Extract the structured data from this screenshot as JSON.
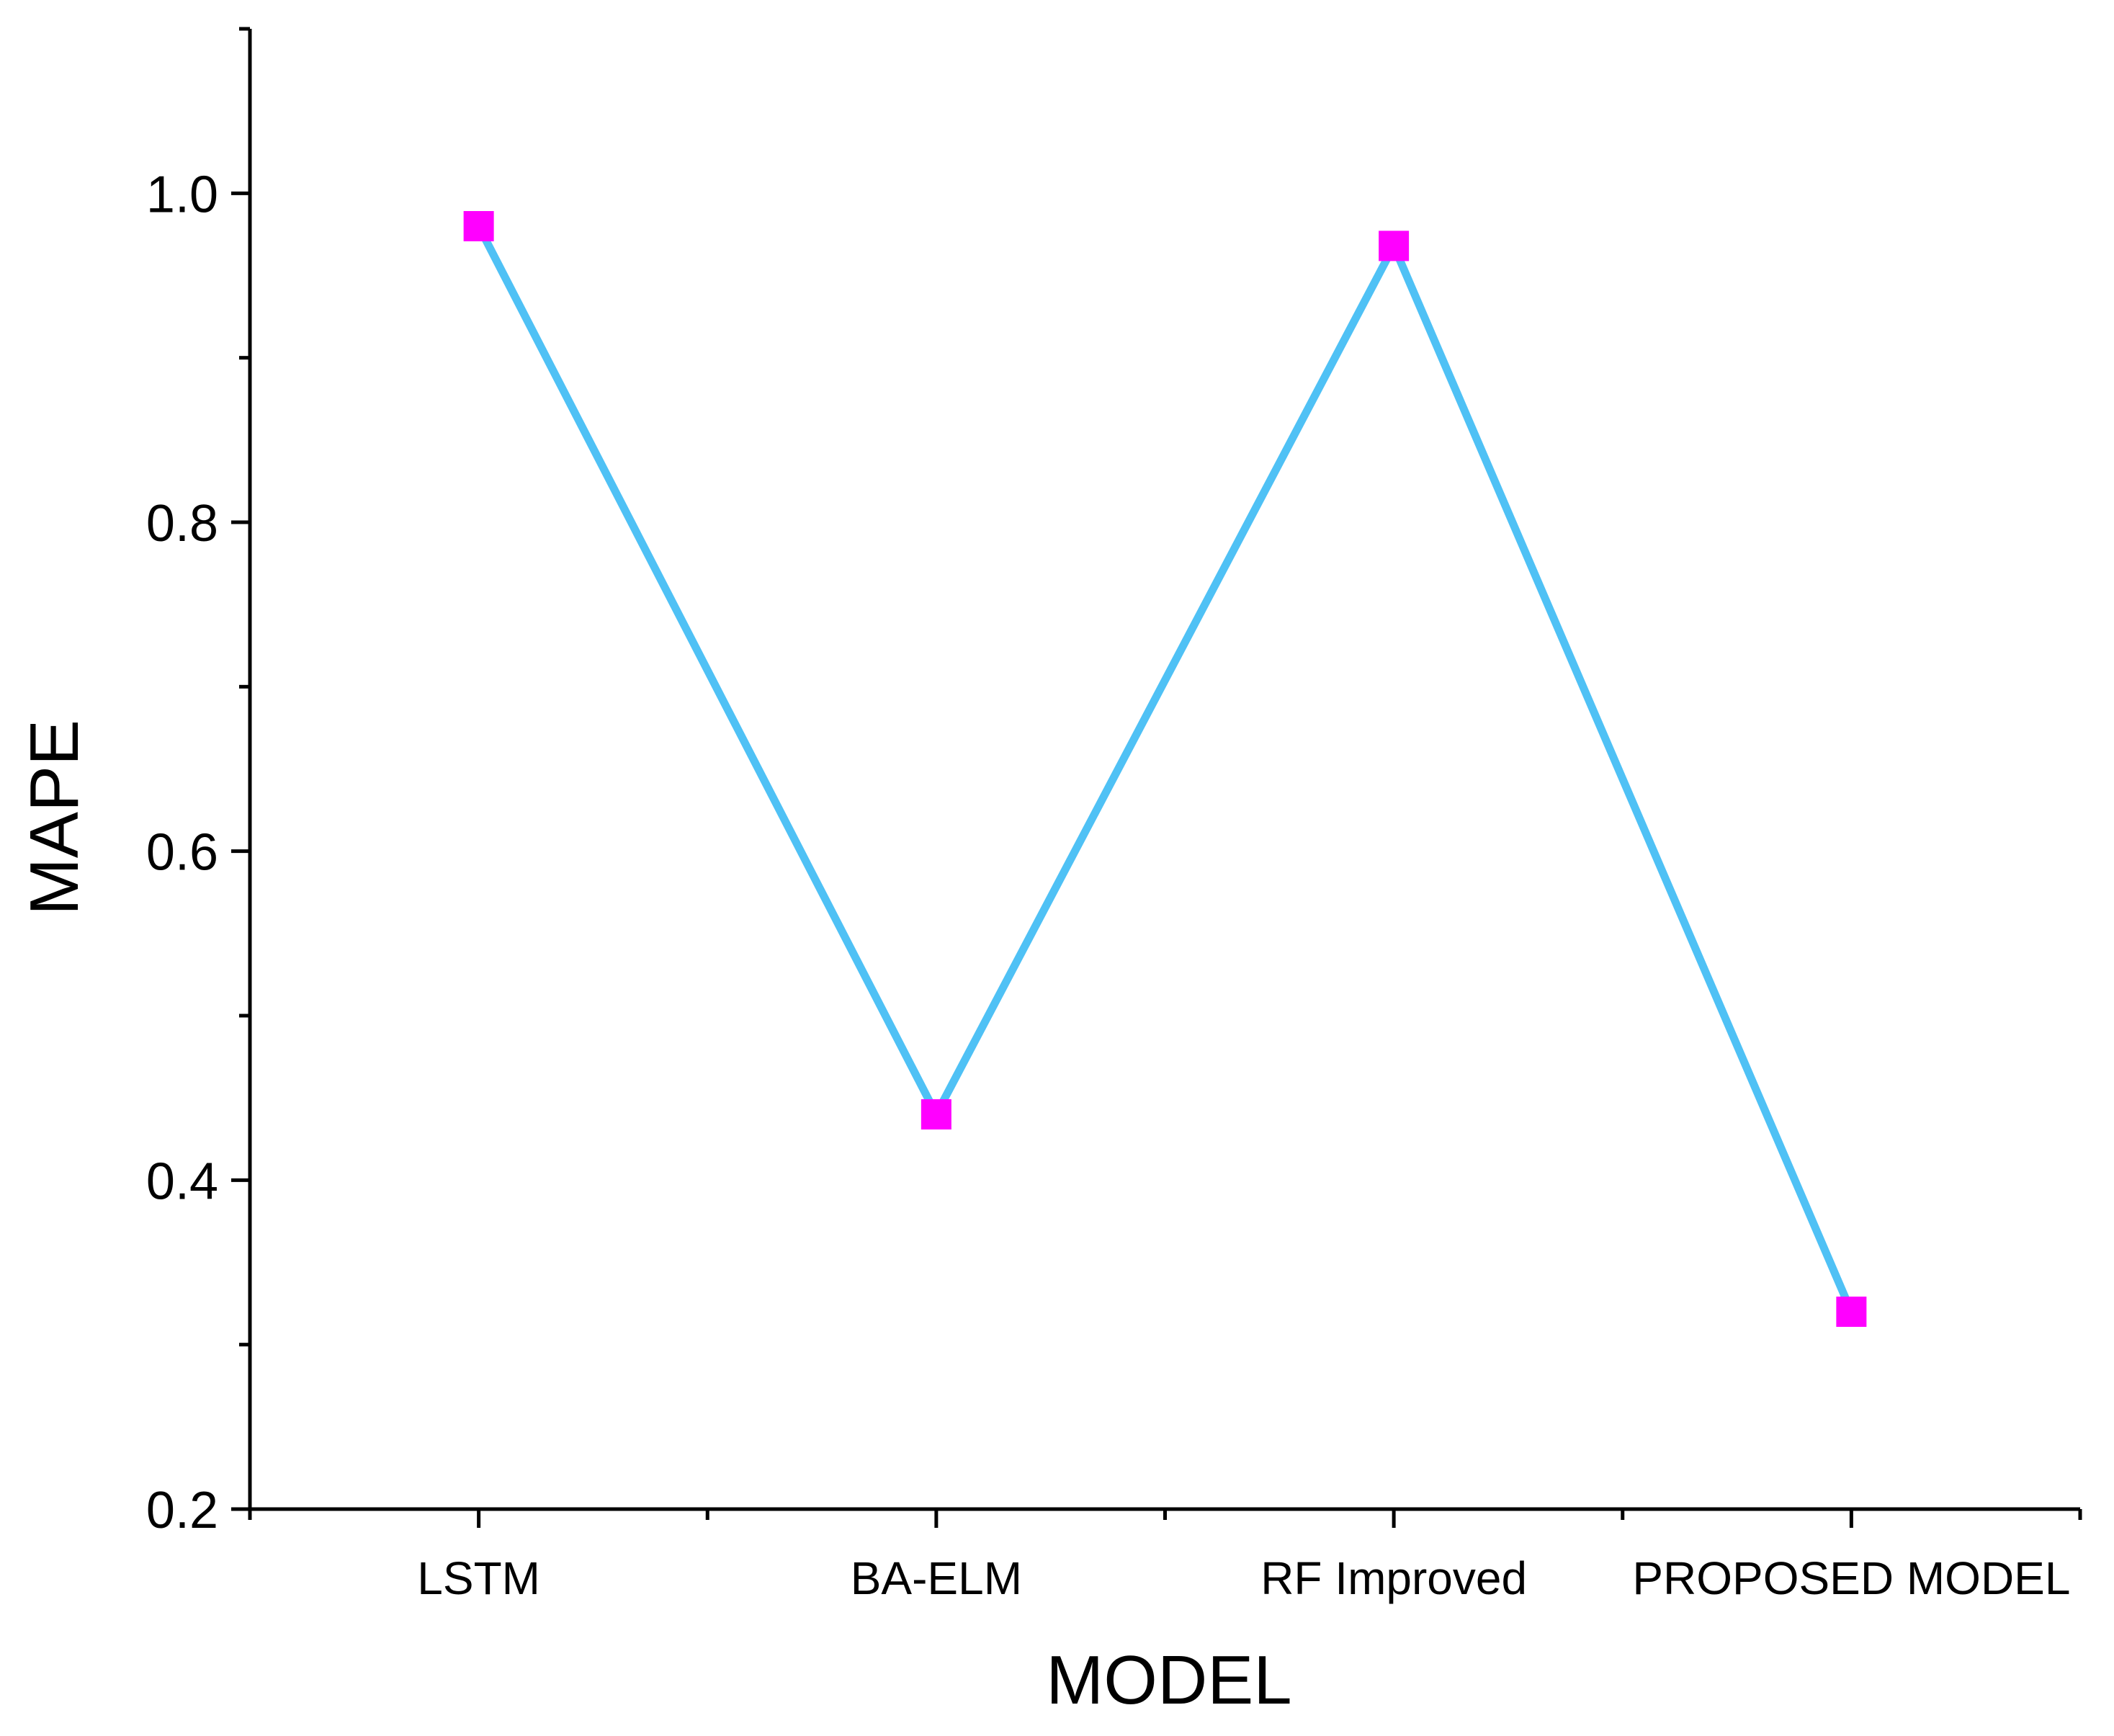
{
  "chart_data": {
    "type": "line",
    "title": "",
    "xlabel": "MODEL",
    "ylabel": "MAPE",
    "categories": [
      "LSTM",
      "BA-ELM",
      "RF Improved",
      "PROPOSED MODEL"
    ],
    "series": [
      {
        "values": [
          0.98,
          0.44,
          0.968,
          0.32
        ],
        "line_color": "#4fc1f5",
        "marker_color": "#ff00ff",
        "marker": "square"
      }
    ],
    "ylim": [
      0.2,
      1.1
    ],
    "yticks": [
      0.2,
      0.4,
      0.6,
      0.8,
      1.0
    ],
    "ytick_labels": [
      "0.2",
      "0.4",
      "0.6",
      "0.8",
      "1.0"
    ],
    "y_minor_step": 0.1,
    "grid": false,
    "legend": "none"
  }
}
